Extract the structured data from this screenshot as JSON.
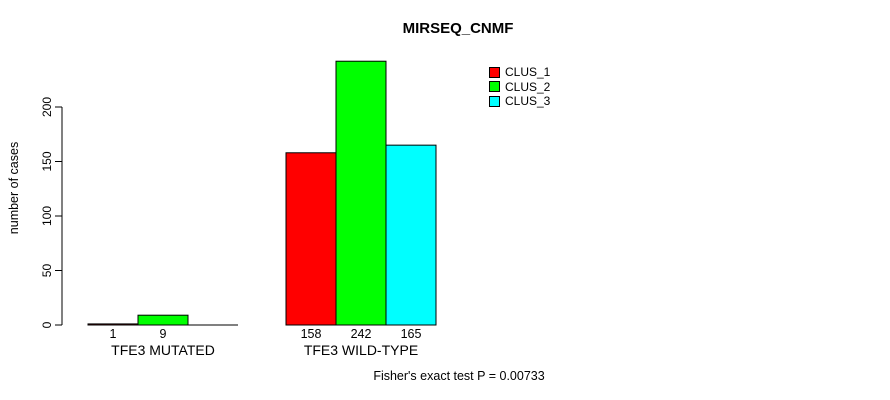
{
  "chart_data": {
    "type": "bar",
    "title": "MIRSEQ_CNMF",
    "ylabel": "number of cases",
    "xlabel": "",
    "annotation": "Fisher's exact test P = 0.00733",
    "categories": [
      "TFE3 MUTATED",
      "TFE3 WILD-TYPE"
    ],
    "series": [
      {
        "name": "CLUS_1",
        "color": "#FF0000",
        "values": [
          1,
          158
        ],
        "value_labels": [
          "1",
          "158"
        ]
      },
      {
        "name": "CLUS_2",
        "color": "#00FF00",
        "values": [
          9,
          242
        ],
        "value_labels": [
          "9",
          "242"
        ]
      },
      {
        "name": "CLUS_3",
        "color": "#00FFFF",
        "values": [
          0,
          165
        ],
        "value_labels": [
          "",
          "165"
        ]
      }
    ],
    "yticks": [
      0,
      50,
      100,
      150,
      200
    ],
    "ylim": [
      0,
      250
    ],
    "grid": false,
    "legend_position": "top-right",
    "bar_border_color": "#000000",
    "background_color": "#FFFFFF",
    "text_color": "#000000"
  }
}
